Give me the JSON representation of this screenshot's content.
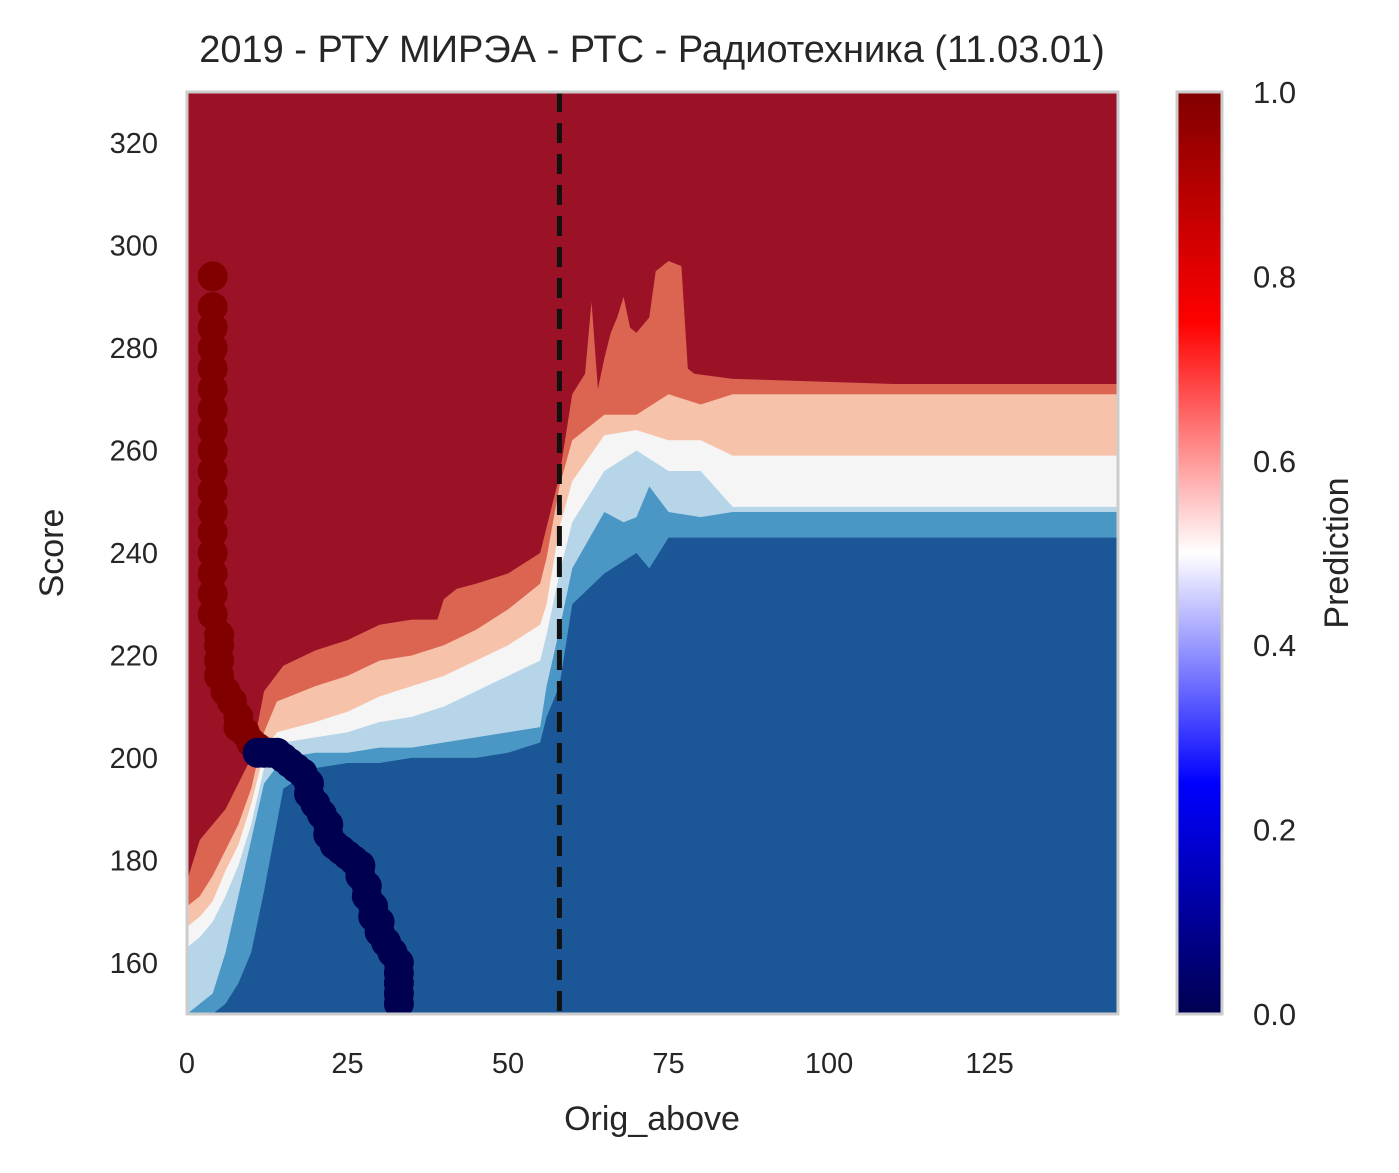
{
  "chart_data": {
    "type": "contour",
    "title": "2019 - РТУ МИРЭА - РТС - Радиотехника (11.03.01)",
    "xlabel": "Orig_above",
    "ylabel": "Score",
    "xlim": [
      0,
      145
    ],
    "ylim": [
      150,
      330
    ],
    "x_ticks": [
      0,
      25,
      50,
      75,
      100,
      125
    ],
    "y_ticks": [
      160,
      180,
      200,
      220,
      240,
      260,
      280,
      300,
      320
    ],
    "grid": false,
    "vline": {
      "x": 58,
      "style": "dashed",
      "color": "#111111"
    },
    "colorbar": {
      "label": "Prediction",
      "range": [
        0.0,
        1.0
      ],
      "ticks": [
        "0.0",
        "0.2",
        "0.4",
        "0.6",
        "0.8",
        "1.0"
      ],
      "colormap": "seismic"
    },
    "levels": [
      {
        "from": 0.8,
        "to": 1.0,
        "color": "#9b1227"
      },
      {
        "from": 0.65,
        "to": 0.8,
        "color": "#dc6552"
      },
      {
        "from": 0.55,
        "to": 0.65,
        "color": "#f7c2aa"
      },
      {
        "from": 0.45,
        "to": 0.55,
        "color": "#f5f5f5"
      },
      {
        "from": 0.35,
        "to": 0.45,
        "color": "#b6d5e8"
      },
      {
        "from": 0.2,
        "to": 0.35,
        "color": "#4a97c5"
      },
      {
        "from": 0.0,
        "to": 0.2,
        "color": "#1b5796"
      }
    ],
    "boundaries": {
      "b80": [
        [
          0,
          176
        ],
        [
          2,
          184
        ],
        [
          4,
          187
        ],
        [
          6,
          190
        ],
        [
          8,
          195
        ],
        [
          10,
          200
        ],
        [
          12,
          213
        ],
        [
          15,
          218
        ],
        [
          20,
          221
        ],
        [
          25,
          223
        ],
        [
          30,
          226
        ],
        [
          35,
          227
        ],
        [
          39,
          227
        ],
        [
          40,
          231
        ],
        [
          42,
          233
        ],
        [
          45,
          234
        ],
        [
          50,
          236
        ],
        [
          55,
          240
        ],
        [
          56,
          245
        ],
        [
          58,
          255
        ],
        [
          60,
          271
        ],
        [
          62,
          275
        ],
        [
          63,
          289
        ],
        [
          64,
          272
        ],
        [
          65,
          278
        ],
        [
          66,
          283
        ],
        [
          67,
          286
        ],
        [
          68,
          290
        ],
        [
          69,
          284
        ],
        [
          70,
          283
        ],
        [
          72,
          286
        ],
        [
          73,
          295
        ],
        [
          75,
          297
        ],
        [
          77,
          296
        ],
        [
          78,
          276
        ],
        [
          79,
          275
        ],
        [
          85,
          274
        ],
        [
          110,
          273
        ],
        [
          145,
          273
        ]
      ],
      "b65": [
        [
          0,
          171
        ],
        [
          2,
          173
        ],
        [
          4,
          177
        ],
        [
          6,
          182
        ],
        [
          8,
          187
        ],
        [
          10,
          194
        ],
        [
          12,
          205
        ],
        [
          14,
          211
        ],
        [
          20,
          214
        ],
        [
          25,
          216
        ],
        [
          30,
          219
        ],
        [
          35,
          220
        ],
        [
          40,
          222
        ],
        [
          45,
          225
        ],
        [
          50,
          229
        ],
        [
          55,
          234
        ],
        [
          56,
          239
        ],
        [
          58,
          253
        ],
        [
          60,
          262
        ],
        [
          65,
          267
        ],
        [
          70,
          267
        ],
        [
          75,
          271
        ],
        [
          80,
          269
        ],
        [
          85,
          271
        ],
        [
          145,
          271
        ]
      ],
      "b55": [
        [
          0,
          167
        ],
        [
          2,
          169
        ],
        [
          4,
          172
        ],
        [
          6,
          178
        ],
        [
          8,
          183
        ],
        [
          10,
          191
        ],
        [
          12,
          201
        ],
        [
          14,
          205
        ],
        [
          20,
          207
        ],
        [
          25,
          209
        ],
        [
          30,
          212
        ],
        [
          35,
          214
        ],
        [
          40,
          216
        ],
        [
          45,
          219
        ],
        [
          50,
          222
        ],
        [
          55,
          226
        ],
        [
          56,
          230
        ],
        [
          58,
          245
        ],
        [
          60,
          254
        ],
        [
          65,
          263
        ],
        [
          70,
          264
        ],
        [
          75,
          262
        ],
        [
          80,
          262
        ],
        [
          85,
          259
        ],
        [
          145,
          259
        ]
      ],
      "b45": [
        [
          0,
          163
        ],
        [
          2,
          165
        ],
        [
          4,
          168
        ],
        [
          6,
          173
        ],
        [
          8,
          179
        ],
        [
          10,
          187
        ],
        [
          12,
          198
        ],
        [
          15,
          203
        ],
        [
          20,
          204
        ],
        [
          25,
          205
        ],
        [
          30,
          207
        ],
        [
          35,
          208
        ],
        [
          40,
          210
        ],
        [
          45,
          213
        ],
        [
          50,
          216
        ],
        [
          55,
          219
        ],
        [
          56,
          224
        ],
        [
          58,
          236
        ],
        [
          60,
          246
        ],
        [
          65,
          256
        ],
        [
          70,
          260
        ],
        [
          75,
          256
        ],
        [
          80,
          256
        ],
        [
          85,
          249
        ],
        [
          145,
          249
        ]
      ],
      "b35": [
        [
          0,
          150
        ],
        [
          2,
          152
        ],
        [
          4,
          154
        ],
        [
          6,
          162
        ],
        [
          8,
          173
        ],
        [
          10,
          184
        ],
        [
          12,
          195
        ],
        [
          15,
          200
        ],
        [
          20,
          201
        ],
        [
          25,
          201
        ],
        [
          30,
          202
        ],
        [
          35,
          202
        ],
        [
          40,
          203
        ],
        [
          45,
          204
        ],
        [
          50,
          205
        ],
        [
          55,
          206
        ],
        [
          56,
          214
        ],
        [
          58,
          225
        ],
        [
          60,
          237
        ],
        [
          65,
          248
        ],
        [
          68,
          246
        ],
        [
          70,
          247
        ],
        [
          72,
          253
        ],
        [
          75,
          248
        ],
        [
          80,
          247
        ],
        [
          85,
          248
        ],
        [
          145,
          248
        ]
      ],
      "b20": [
        [
          0,
          150
        ],
        [
          4,
          150
        ],
        [
          6,
          152
        ],
        [
          8,
          156
        ],
        [
          10,
          162
        ],
        [
          12,
          174
        ],
        [
          15,
          194
        ],
        [
          20,
          198
        ],
        [
          25,
          199
        ],
        [
          30,
          199
        ],
        [
          35,
          200
        ],
        [
          40,
          200
        ],
        [
          45,
          200
        ],
        [
          50,
          201
        ],
        [
          55,
          203
        ],
        [
          56,
          208
        ],
        [
          58,
          214
        ],
        [
          60,
          230
        ],
        [
          65,
          236
        ],
        [
          70,
          240
        ],
        [
          72,
          237
        ],
        [
          75,
          243
        ],
        [
          80,
          243
        ],
        [
          85,
          243
        ],
        [
          145,
          243
        ]
      ]
    },
    "series": [
      {
        "color": "#800000",
        "points": [
          [
            4,
            294
          ],
          [
            4,
            288
          ],
          [
            4,
            284
          ],
          [
            4,
            280
          ],
          [
            4,
            276
          ],
          [
            4,
            272
          ],
          [
            4,
            268
          ],
          [
            4,
            264
          ],
          [
            4,
            260
          ],
          [
            4,
            256
          ],
          [
            4,
            252
          ],
          [
            4,
            248
          ],
          [
            4,
            244
          ],
          [
            4,
            240
          ],
          [
            4,
            236
          ],
          [
            4,
            232
          ],
          [
            4,
            228
          ],
          [
            5,
            224
          ],
          [
            5,
            222
          ],
          [
            5,
            219
          ],
          [
            5,
            216
          ],
          [
            6,
            213
          ],
          [
            7,
            211
          ],
          [
            8,
            208
          ],
          [
            8,
            206
          ],
          [
            9,
            205
          ],
          [
            10,
            203
          ],
          [
            11,
            202
          ]
        ]
      },
      {
        "color": "#000050",
        "points": [
          [
            11,
            201
          ],
          [
            12,
            201
          ],
          [
            13,
            201
          ],
          [
            14,
            201
          ],
          [
            15,
            200
          ],
          [
            16,
            199
          ],
          [
            17,
            198
          ],
          [
            18,
            197
          ],
          [
            19,
            195
          ],
          [
            19,
            193
          ],
          [
            20,
            191
          ],
          [
            21,
            189
          ],
          [
            22,
            187
          ],
          [
            22,
            185
          ],
          [
            23,
            183
          ],
          [
            24,
            182
          ],
          [
            25,
            181
          ],
          [
            26,
            180
          ],
          [
            27,
            179
          ],
          [
            27,
            177
          ],
          [
            28,
            175
          ],
          [
            28,
            173
          ],
          [
            29,
            171
          ],
          [
            29,
            169
          ],
          [
            30,
            168
          ],
          [
            30,
            166
          ],
          [
            31,
            164
          ],
          [
            32,
            162
          ],
          [
            33,
            160
          ],
          [
            33,
            158
          ],
          [
            33,
            156
          ],
          [
            33,
            154
          ],
          [
            33,
            152
          ]
        ]
      }
    ]
  }
}
